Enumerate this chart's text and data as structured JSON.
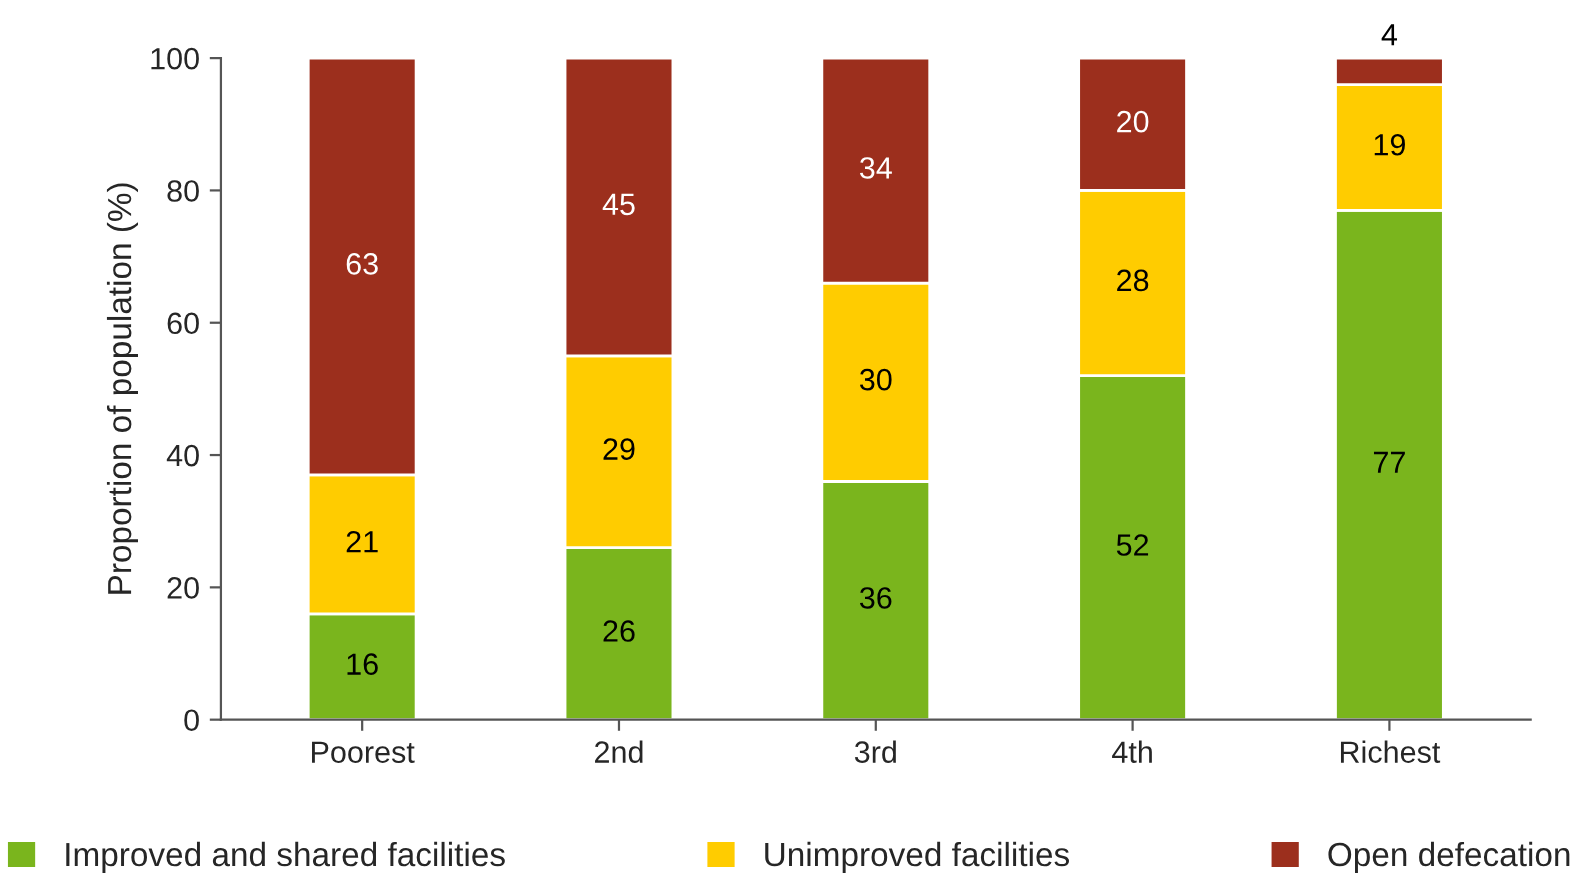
{
  "chart_data": {
    "type": "bar",
    "stacked": true,
    "ylabel": "Proportion of population (%)",
    "categories": [
      "Poorest",
      "2nd",
      "3rd",
      "4th",
      "Richest"
    ],
    "series": [
      {
        "name": "Improved and shared facilities",
        "color": "#7ab51d",
        "values": [
          16,
          26,
          36,
          52,
          77
        ]
      },
      {
        "name": "Unimproved facilities",
        "color": "#ffcc00",
        "values": [
          21,
          29,
          30,
          28,
          19
        ]
      },
      {
        "name": "Open defecation",
        "color": "#9c2f1d",
        "values": [
          63,
          45,
          34,
          20,
          4
        ]
      }
    ],
    "ylim": [
      0,
      100
    ],
    "yticks": [
      0,
      20,
      40,
      60,
      80,
      100
    ],
    "data_labels": true,
    "legend": "bottom",
    "grid": false
  }
}
